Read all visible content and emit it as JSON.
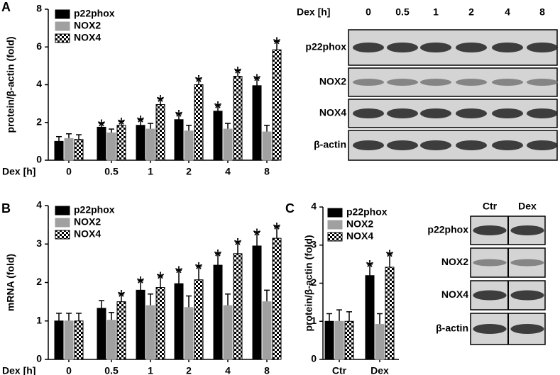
{
  "chart_data": [
    {
      "type": "bar",
      "panel": "A",
      "ylabel": "protein/β-actin (fold)",
      "xlabel": "Dex [h]",
      "categories": [
        "0",
        "0.5",
        "1",
        "2",
        "4",
        "8"
      ],
      "ylim": [
        0,
        8
      ],
      "yticks": [
        0,
        2,
        4,
        6,
        8
      ],
      "series": [
        {
          "name": "p22phox",
          "color": "#000000",
          "values": [
            1.0,
            1.75,
            1.85,
            2.15,
            2.6,
            3.95
          ],
          "errors": [
            0.25,
            0.2,
            0.3,
            0.3,
            0.3,
            0.4
          ],
          "annotations": [
            null,
            "*",
            "*",
            "*",
            "*",
            "*"
          ]
        },
        {
          "name": "NOX2",
          "color": "#a0a0a0",
          "values": [
            1.15,
            1.45,
            1.65,
            1.55,
            1.65,
            1.5
          ],
          "errors": [
            0.25,
            0.2,
            0.3,
            0.3,
            0.3,
            0.35
          ],
          "annotations": [
            null,
            null,
            null,
            null,
            null,
            null
          ]
        },
        {
          "name": "NOX4",
          "color": "#000000",
          "pattern": "checker",
          "values": [
            1.1,
            1.85,
            2.95,
            4.0,
            4.45,
            5.85
          ],
          "errors": [
            0.25,
            0.2,
            0.3,
            0.3,
            0.3,
            0.45
          ],
          "annotations": [
            null,
            "*",
            "*",
            "*",
            "*",
            "*"
          ]
        }
      ]
    },
    {
      "type": "bar",
      "panel": "B",
      "ylabel": "mRNA (fold)",
      "xlabel": "Dex [h]",
      "categories": [
        "0",
        "0.5",
        "1",
        "2",
        "4",
        "8"
      ],
      "ylim": [
        0,
        4
      ],
      "yticks": [
        0,
        1,
        2,
        3,
        4
      ],
      "series": [
        {
          "name": "p22phox",
          "color": "#000000",
          "values": [
            1.0,
            1.33,
            1.8,
            1.97,
            2.45,
            2.95
          ],
          "errors": [
            0.2,
            0.2,
            0.25,
            0.35,
            0.3,
            0.35
          ],
          "annotations": [
            null,
            null,
            "*",
            "*",
            "*",
            "*"
          ]
        },
        {
          "name": "NOX2",
          "color": "#a0a0a0",
          "values": [
            1.0,
            1.02,
            1.4,
            1.35,
            1.4,
            1.5
          ],
          "errors": [
            0.2,
            0.2,
            0.3,
            0.3,
            0.3,
            0.3
          ],
          "annotations": [
            null,
            null,
            null,
            null,
            null,
            null
          ]
        },
        {
          "name": "NOX4",
          "color": "#000000",
          "pattern": "checker",
          "values": [
            1.0,
            1.5,
            1.87,
            2.07,
            2.75,
            3.15
          ],
          "errors": [
            0.2,
            0.2,
            0.3,
            0.35,
            0.3,
            0.3
          ],
          "annotations": [
            null,
            "*",
            "*",
            "*",
            "*",
            "*"
          ]
        }
      ]
    },
    {
      "type": "bar",
      "panel": "C",
      "ylabel": "protein/β-actin (fold)",
      "categories": [
        "Ctr",
        "Dex"
      ],
      "ylim": [
        0,
        4
      ],
      "yticks": [
        0,
        1,
        2,
        3,
        4
      ],
      "series": [
        {
          "name": "p22phox",
          "color": "#000000",
          "values": [
            1.0,
            2.2
          ],
          "errors": [
            0.2,
            0.3
          ],
          "annotations": [
            null,
            "*"
          ]
        },
        {
          "name": "NOX2",
          "color": "#a0a0a0",
          "values": [
            1.0,
            0.92
          ],
          "errors": [
            0.3,
            0.28
          ],
          "annotations": [
            null,
            null
          ]
        },
        {
          "name": "NOX4",
          "color": "#000000",
          "pattern": "checker",
          "values": [
            1.0,
            2.42
          ],
          "errors": [
            0.25,
            0.35
          ],
          "annotations": [
            null,
            "*"
          ]
        }
      ]
    }
  ],
  "blots": [
    {
      "header": "Dex [h]",
      "lanes": [
        "0",
        "0.5",
        "1",
        "2",
        "4",
        "8"
      ],
      "rows": [
        "p22phox",
        "NOX2",
        "NOX4",
        "β-actin"
      ]
    },
    {
      "lanes": [
        "Ctr",
        "Dex"
      ],
      "rows": [
        "p22phox",
        "NOX2",
        "NOX4",
        "β-actin"
      ]
    }
  ]
}
